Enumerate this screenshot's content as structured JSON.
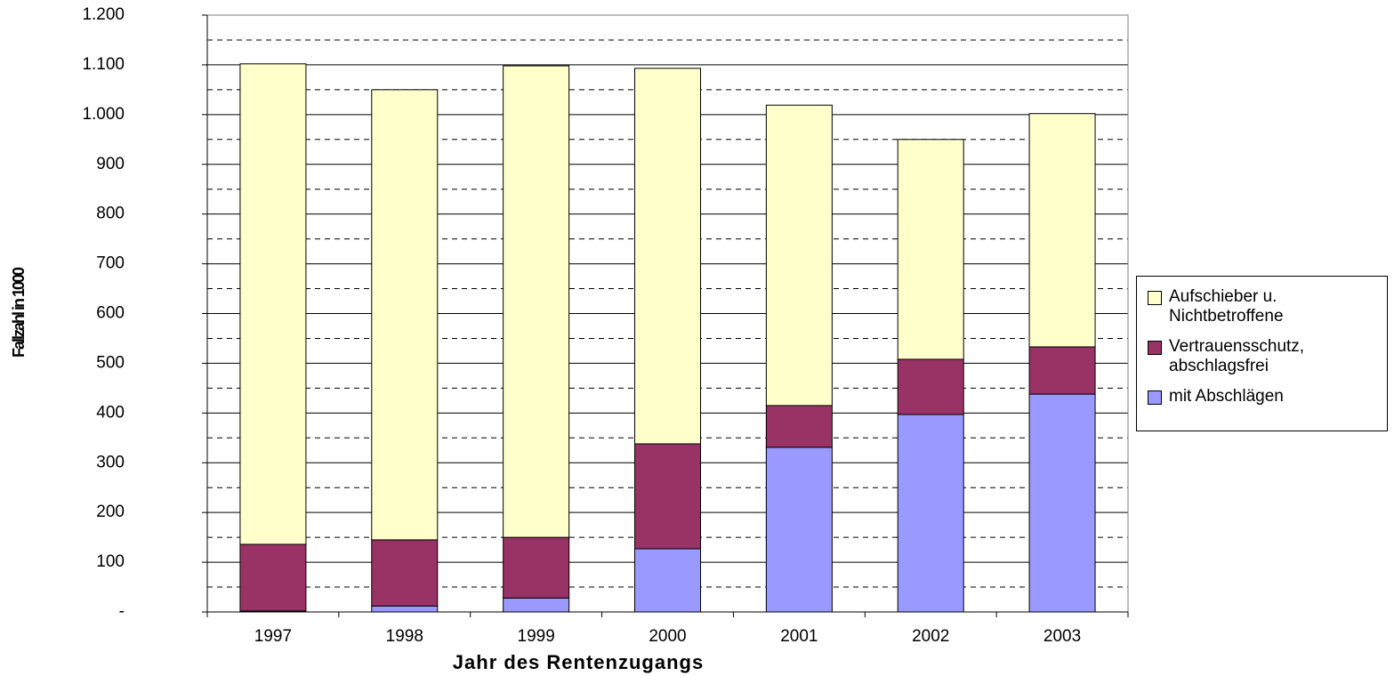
{
  "chart_data": {
    "type": "stacked_bar",
    "y_axis_label": "Fallzahl in 1000",
    "x_axis_label": "Jahr des Rentenzugangs",
    "categories": [
      "1997",
      "1998",
      "1999",
      "2000",
      "2001",
      "2002",
      "2003"
    ],
    "series": [
      {
        "name": "mit Abschlägen",
        "color": "#9999ff",
        "values": [
          2,
          12,
          28,
          127,
          331,
          397,
          438
        ]
      },
      {
        "name": "Vertrauensschutz, abschlagsfrei",
        "color": "#993366",
        "values": [
          134,
          133,
          122,
          211,
          84,
          111,
          95
        ]
      },
      {
        "name": "Aufschieber u. Nichtbetroffene",
        "color": "#ffffcc",
        "values": [
          966,
          905,
          948,
          755,
          604,
          442,
          469
        ]
      }
    ],
    "ylim": [
      0,
      1200
    ],
    "yticks": [
      {
        "value": 0,
        "label": "-"
      },
      100,
      200,
      300,
      400,
      500,
      600,
      700,
      800,
      900,
      {
        "value": 1000,
        "label": "1.000"
      },
      {
        "value": 1100,
        "label": "1.100"
      },
      {
        "value": 1200,
        "label": "1.200"
      }
    ],
    "grid": true,
    "minor_grid": true,
    "legend": "right"
  }
}
